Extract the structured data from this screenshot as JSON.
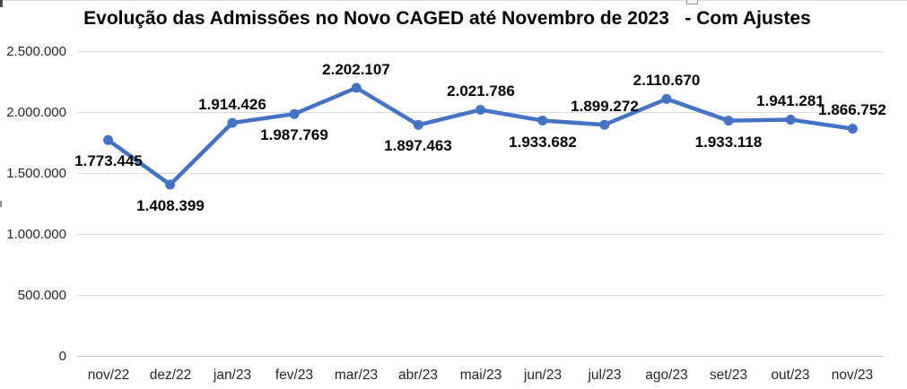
{
  "title": "Evolução das Admissões no Novo CAGED até Novembro de 2023   - Com Ajustes",
  "chart_data": {
    "type": "line",
    "title": "Evolução das Admissões no Novo CAGED até Novembro de 2023   - Com Ajustes",
    "categories": [
      "nov/22",
      "dez/22",
      "jan/23",
      "fev/23",
      "mar/23",
      "abr/23",
      "mai/23",
      "jun/23",
      "jul/23",
      "ago/23",
      "set/23",
      "out/23",
      "nov/23"
    ],
    "values": [
      1773445,
      1408399,
      1914426,
      1987769,
      2202107,
      1897463,
      2021786,
      1933682,
      1899272,
      2110670,
      1933118,
      1941281,
      1866752
    ],
    "data_labels": [
      "1.773.445",
      "1.408.399",
      "1.914.426",
      "1.987.769",
      "2.202.107",
      "1.897.463",
      "2.021.786",
      "1.933.682",
      "1.899.272",
      "2.110.670",
      "1.933.118",
      "1.941.281",
      "1.866.752"
    ],
    "label_positions": [
      "below",
      "below",
      "above",
      "below",
      "above",
      "below",
      "above",
      "below",
      "above",
      "above",
      "below",
      "above",
      "above"
    ],
    "y_ticks": [
      0,
      500000,
      1000000,
      1500000,
      2000000,
      2500000
    ],
    "y_tick_labels": [
      "0",
      "500.000",
      "1.000.000",
      "1.500.000",
      "2.000.000",
      "2.500.000"
    ],
    "ylim": [
      0,
      2500000
    ],
    "xlabel": "",
    "ylabel": "",
    "grid": true,
    "legend_position": "none",
    "line_color": "#4472C4",
    "gridline_color": "#d9d9d9",
    "axis_line_color": "#bfbfbf"
  }
}
